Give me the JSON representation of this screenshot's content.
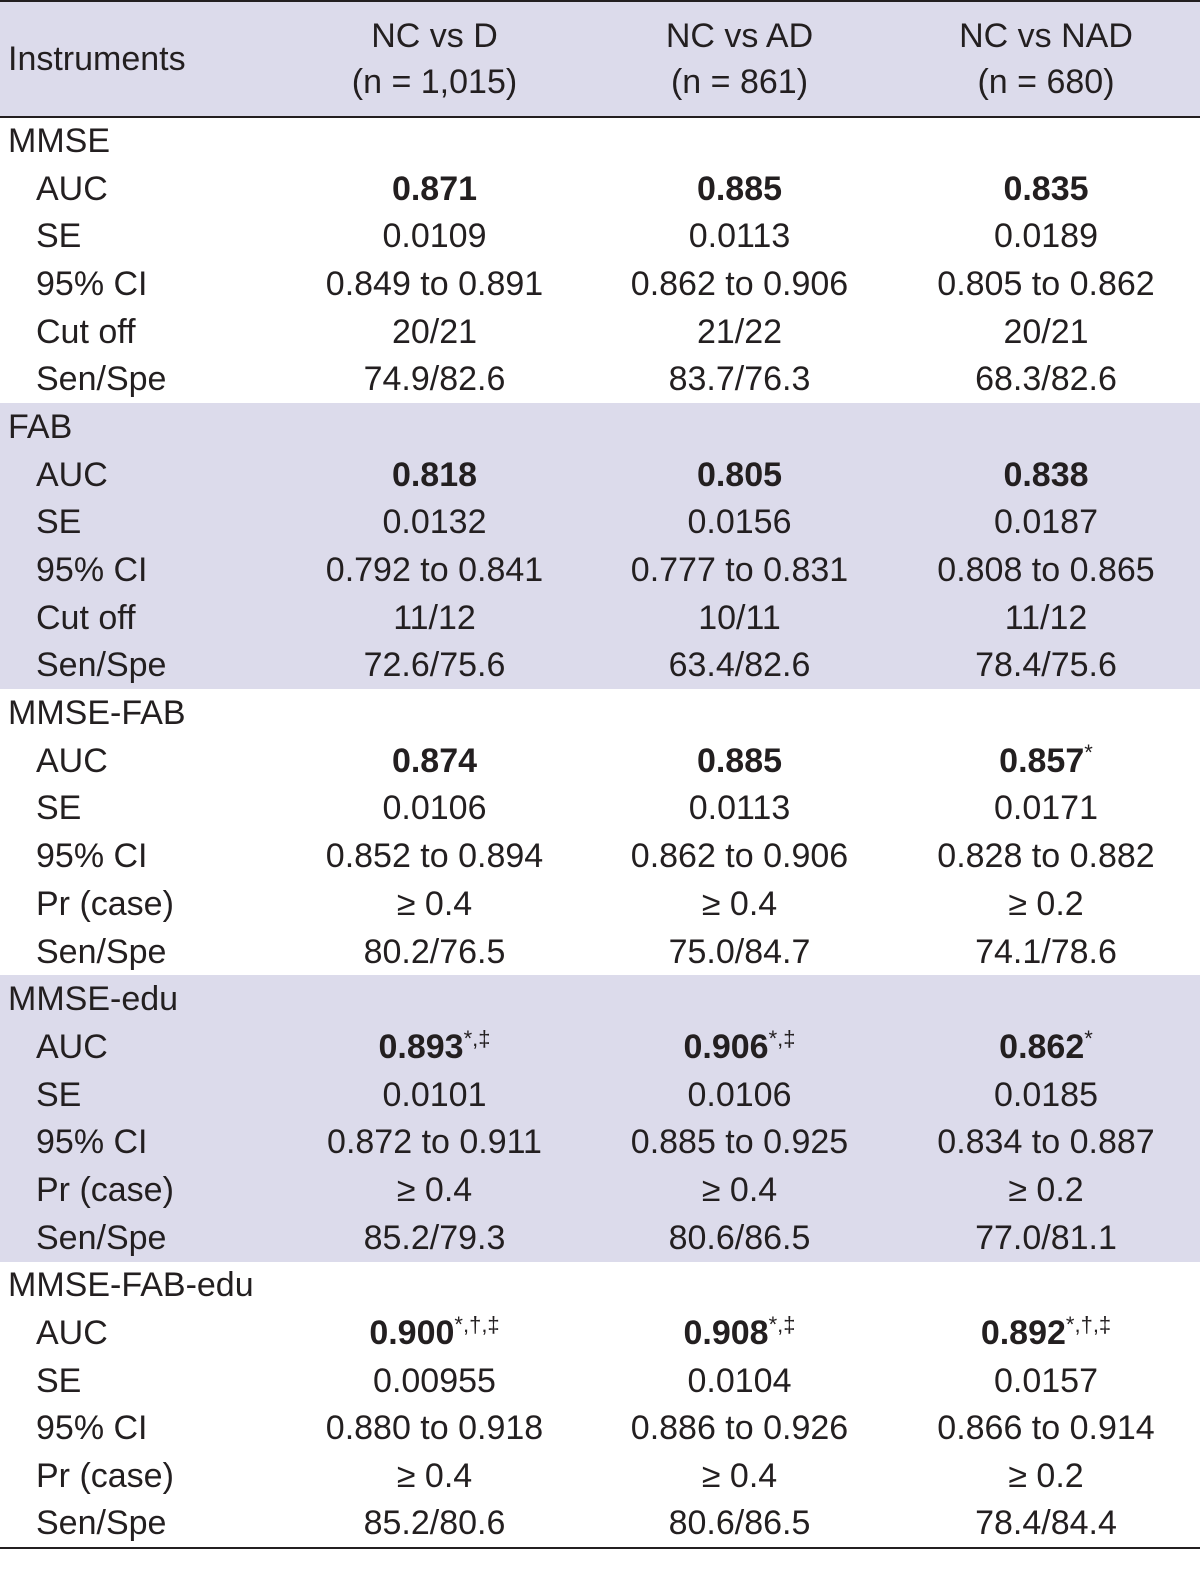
{
  "header": {
    "instruments": "Instruments",
    "columns": [
      {
        "title": "NC vs D",
        "n": "(n = 1,015)"
      },
      {
        "title": "NC vs AD",
        "n": "(n = 861)"
      },
      {
        "title": "NC vs NAD",
        "n": "(n = 680)"
      }
    ]
  },
  "groups": [
    {
      "name": "MMSE",
      "rows": [
        {
          "label": "AUC",
          "values": [
            "0.871",
            "0.885",
            "0.835"
          ],
          "marks": [
            "",
            "",
            ""
          ]
        },
        {
          "label": "SE",
          "values": [
            "0.0109",
            "0.0113",
            "0.0189"
          ]
        },
        {
          "label": "95% CI",
          "values": [
            "0.849 to 0.891",
            "0.862 to 0.906",
            "0.805 to 0.862"
          ]
        },
        {
          "label": "Cut off",
          "values": [
            "20/21",
            "21/22",
            "20/21"
          ]
        },
        {
          "label": "Sen/Spe",
          "values": [
            "74.9/82.6",
            "83.7/76.3",
            "68.3/82.6"
          ]
        }
      ]
    },
    {
      "name": "FAB",
      "rows": [
        {
          "label": "AUC",
          "values": [
            "0.818",
            "0.805",
            "0.838"
          ],
          "marks": [
            "",
            "",
            ""
          ]
        },
        {
          "label": "SE",
          "values": [
            "0.0132",
            "0.0156",
            "0.0187"
          ]
        },
        {
          "label": "95% CI",
          "values": [
            "0.792 to 0.841",
            "0.777 to 0.831",
            "0.808 to 0.865"
          ]
        },
        {
          "label": "Cut off",
          "values": [
            "11/12",
            "10/11",
            "11/12"
          ]
        },
        {
          "label": "Sen/Spe",
          "values": [
            "72.6/75.6",
            "63.4/82.6",
            "78.4/75.6"
          ]
        }
      ]
    },
    {
      "name": "MMSE-FAB",
      "rows": [
        {
          "label": "AUC",
          "values": [
            "0.874",
            "0.885",
            "0.857"
          ],
          "marks": [
            "",
            "",
            "*"
          ]
        },
        {
          "label": "SE",
          "values": [
            "0.0106",
            "0.0113",
            "0.0171"
          ]
        },
        {
          "label": "95% CI",
          "values": [
            "0.852 to 0.894",
            "0.862 to 0.906",
            "0.828 to 0.882"
          ]
        },
        {
          "label": "Pr (case)",
          "values": [
            "≥ 0.4",
            "≥ 0.4",
            "≥ 0.2"
          ]
        },
        {
          "label": "Sen/Spe",
          "values": [
            "80.2/76.5",
            "75.0/84.7",
            "74.1/78.6"
          ]
        }
      ]
    },
    {
      "name": "MMSE-edu",
      "rows": [
        {
          "label": "AUC",
          "values": [
            "0.893",
            "0.906",
            "0.862"
          ],
          "marks": [
            "*,‡",
            "*,‡",
            "*"
          ]
        },
        {
          "label": "SE",
          "values": [
            "0.0101",
            "0.0106",
            "0.0185"
          ]
        },
        {
          "label": "95% CI",
          "values": [
            "0.872 to 0.911",
            "0.885 to 0.925",
            "0.834 to 0.887"
          ]
        },
        {
          "label": "Pr (case)",
          "values": [
            "≥ 0.4",
            "≥ 0.4",
            "≥ 0.2"
          ]
        },
        {
          "label": "Sen/Spe",
          "values": [
            "85.2/79.3",
            "80.6/86.5",
            "77.0/81.1"
          ]
        }
      ]
    },
    {
      "name": "MMSE-FAB-edu",
      "rows": [
        {
          "label": "AUC",
          "values": [
            "0.900",
            "0.908",
            "0.892"
          ],
          "marks": [
            "*,†,‡",
            "*,‡",
            "*,†,‡"
          ]
        },
        {
          "label": "SE",
          "values": [
            "0.00955",
            "0.0104",
            "0.0157"
          ]
        },
        {
          "label": "95% CI",
          "values": [
            "0.880 to 0.918",
            "0.886 to 0.926",
            "0.866 to 0.914"
          ]
        },
        {
          "label": "Pr (case)",
          "values": [
            "≥ 0.4",
            "≥ 0.4",
            "≥ 0.2"
          ]
        },
        {
          "label": "Sen/Spe",
          "values": [
            "85.2/80.6",
            "80.6/86.5",
            "78.4/84.4"
          ]
        }
      ]
    }
  ]
}
